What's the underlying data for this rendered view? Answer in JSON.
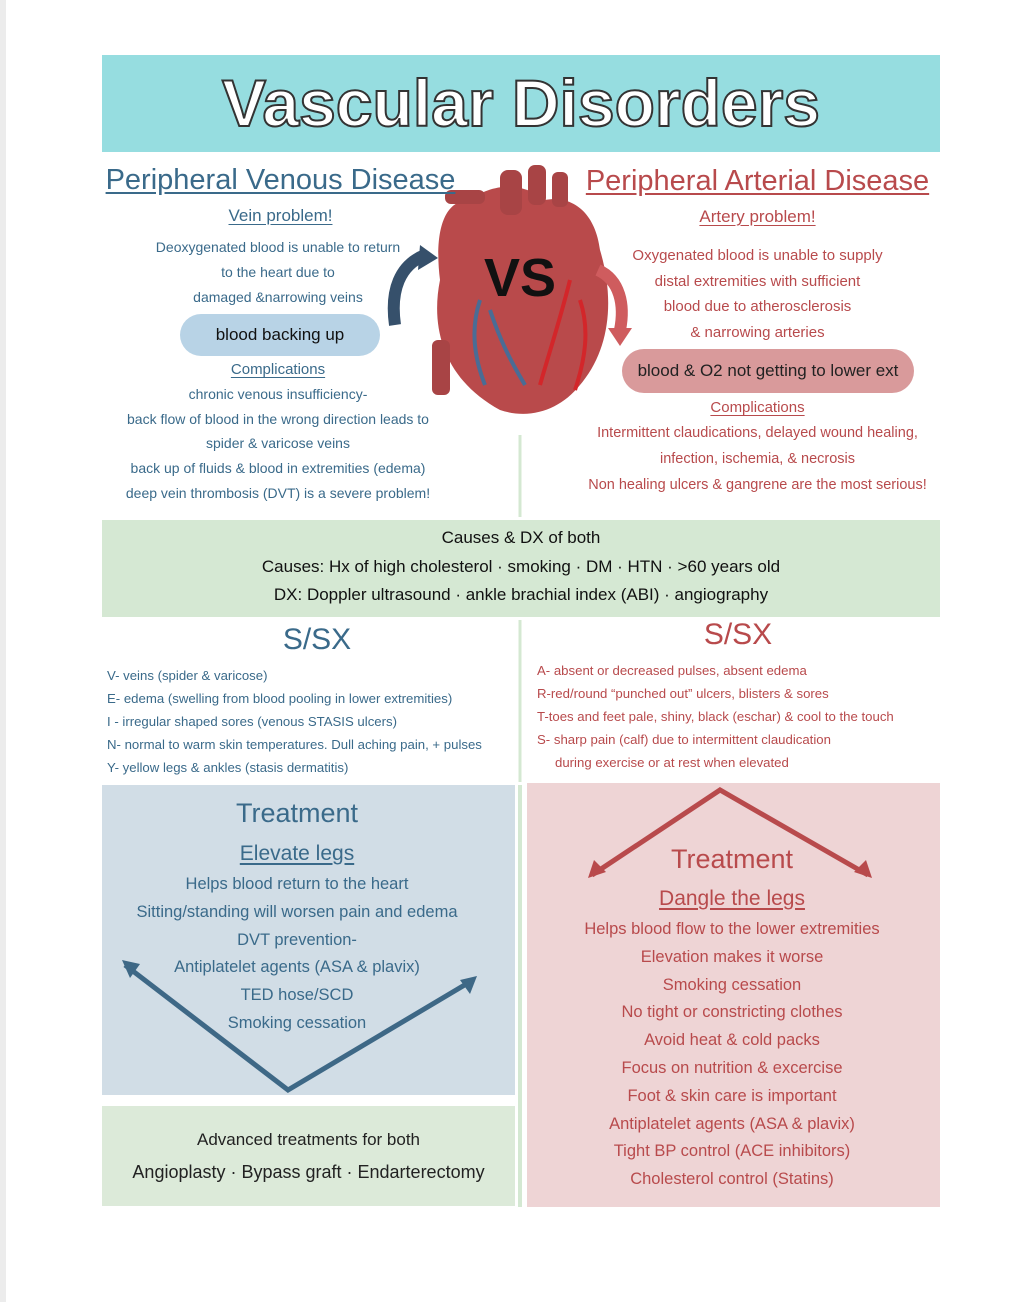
{
  "title": "Vascular Disorders",
  "vs": "VS",
  "venous": {
    "heading": "Peripheral Venous Disease",
    "subheading": "Vein problem!",
    "description": [
      "Deoxygenated blood is unable to return",
      "to the heart due to",
      "damaged &narrowing veins"
    ],
    "highlight": "blood backing up",
    "complications_label": "Complications",
    "complications": [
      "chronic venous insufficiency-",
      "back flow of blood in the wrong direction  leads to",
      "spider & varicose veins",
      "back up of fluids & blood in extremities (edema)",
      "deep vein thrombosis (DVT) is a severe problem!"
    ]
  },
  "arterial": {
    "heading": "Peripheral Arterial Disease",
    "subheading": "Artery problem!",
    "description": [
      "Oxygenated blood is unable to supply",
      "distal extremities with sufficient",
      "blood due to atherosclerosis",
      "& narrowing arteries"
    ],
    "highlight": "blood & O2 not getting to lower ext",
    "complications_label": "Complications",
    "complications": [
      "Intermittent claudications, delayed wound healing,",
      "infection, ischemia, & necrosis",
      "Non healing ulcers & gangrene are the most serious!"
    ]
  },
  "causes": {
    "title": "Causes & DX of both",
    "lines": [
      "Causes: Hx of high cholesterol · smoking · DM · HTN · >60 years old",
      "DX: Doppler ultrasound · ankle brachial index (ABI) · angiography"
    ]
  },
  "venous_ssx": {
    "title": "S/SX",
    "items": [
      "V- veins (spider & varicose)",
      "E- edema (swelling from blood pooling in lower extremities)",
      "I - irregular shaped sores (venous STASIS ulcers)",
      "N- normal to warm skin temperatures.  Dull aching pain, + pulses",
      "Y- yellow legs & ankles (stasis dermatitis)"
    ]
  },
  "arterial_ssx": {
    "title": "S/SX",
    "items": [
      "A- absent or decreased pulses, absent edema",
      "R-red/round  “punched out” ulcers, blisters & sores",
      "T-toes and feet pale, shiny, black (eschar) & cool to the touch",
      "S- sharp pain (calf) due to intermittent claudication",
      "during exercise or at rest when elevated"
    ]
  },
  "venous_treatment": {
    "title": "Treatment",
    "subtitle": "Elevate legs",
    "items": [
      "Helps blood return to the heart",
      "Sitting/standing will worsen pain and edema",
      "DVT prevention-",
      "Antiplatelet agents  (ASA & plavix)",
      "TED hose/SCD",
      "Smoking cessation"
    ]
  },
  "arterial_treatment": {
    "title": "Treatment",
    "subtitle": "Dangle the legs",
    "items": [
      "Helps blood flow to the  lower extremities",
      "Elevation makes it worse",
      "Smoking cessation",
      "No tight or constricting clothes",
      "Avoid heat & cold packs",
      "Focus on nutrition & excercise",
      "Foot & skin care is important",
      "Antiplatelet agents (ASA & plavix)",
      "Tight BP control (ACE inhibitors)",
      "Cholesterol control (Statins)"
    ]
  },
  "advanced": {
    "title": "Advanced treatments for both",
    "line": "Angioplasty  · Bypass graft · Endarterectomy"
  }
}
